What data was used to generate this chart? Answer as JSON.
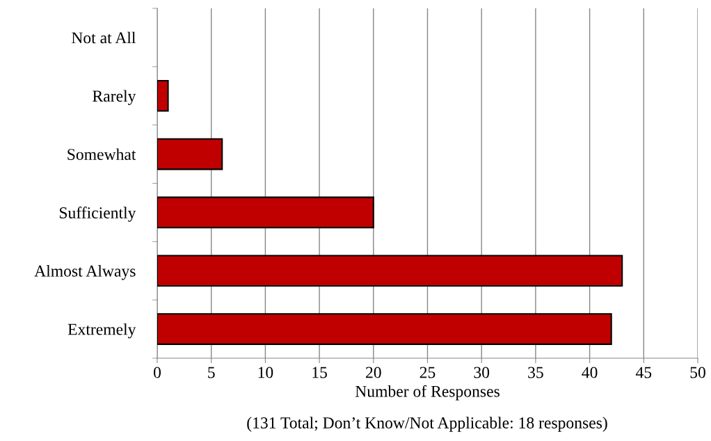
{
  "chart_data": {
    "type": "bar",
    "orientation": "horizontal",
    "categories": [
      "Not at All",
      "Rarely",
      "Somewhat",
      "Sufficiently",
      "Almost Always",
      "Extremely"
    ],
    "values": [
      0,
      1,
      6,
      20,
      43,
      42
    ],
    "color": "#c00000",
    "xlabel": "Number of Responses",
    "annotations": [
      "(131 Total; Don’t Know/Not Applicable: 18 responses)"
    ],
    "xlim": [
      0,
      50
    ],
    "xticks": [
      0,
      5,
      10,
      15,
      20,
      25,
      30,
      35,
      40,
      45,
      50
    ],
    "grid": "x",
    "legend": false
  }
}
